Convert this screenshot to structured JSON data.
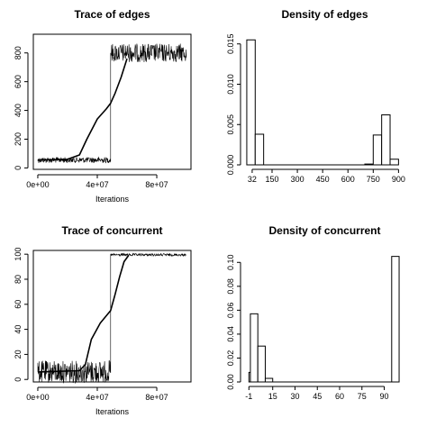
{
  "chart_data": [
    {
      "type": "line",
      "title": "Trace of edges",
      "xlabel": "Iterations",
      "ylabel": "",
      "xlim": [
        -3000000,
        103000000
      ],
      "ylim": [
        -10,
        930
      ],
      "x_ticks": [
        0,
        40000000,
        80000000
      ],
      "x_tick_labels": [
        "0e+00",
        "4e+07",
        "8e+07"
      ],
      "y_ticks": [
        0,
        200,
        400,
        600,
        800
      ],
      "y_tick_labels": [
        "0",
        "200",
        "400",
        "600",
        "800"
      ],
      "series": [
        {
          "kind": "trace",
          "segments": [
            {
              "x_from": 0,
              "x_to": 49000000,
              "mean": 55,
              "spread": 20
            },
            {
              "x_from": 49000000,
              "x_to": 100000000,
              "mean": 800,
              "spread": 65
            }
          ]
        },
        {
          "kind": "running-mean",
          "x": [
            0,
            20000000,
            28000000,
            33000000,
            40000000,
            46000000,
            49000000,
            52000000,
            56000000,
            60000000
          ],
          "y": [
            55,
            60,
            90,
            200,
            340,
            410,
            450,
            520,
            630,
            760
          ]
        }
      ]
    },
    {
      "type": "bar",
      "title": "Density of edges",
      "xlabel": "",
      "ylabel": "",
      "xlim": [
        -5,
        930
      ],
      "ylim": [
        0,
        0.0162
      ],
      "x_ticks": [
        32,
        150,
        300,
        450,
        600,
        750,
        900
      ],
      "x_tick_labels": [
        "32",
        "150",
        "300",
        "450",
        "600",
        "750",
        "900"
      ],
      "y_ticks": [
        0,
        0.005,
        0.01,
        0.015
      ],
      "y_tick_labels": [
        "0.000",
        "0.005",
        "0.010",
        "0.015"
      ],
      "bins": [
        {
          "from": 0,
          "to": 50,
          "value": 0.0155
        },
        {
          "from": 50,
          "to": 100,
          "value": 0.0038
        },
        {
          "from": 700,
          "to": 750,
          "value": 0.0001
        },
        {
          "from": 750,
          "to": 800,
          "value": 0.0037
        },
        {
          "from": 800,
          "to": 850,
          "value": 0.0062
        },
        {
          "from": 850,
          "to": 900,
          "value": 0.0007
        }
      ]
    },
    {
      "type": "line",
      "title": "Trace of concurrent",
      "xlabel": "Iterations",
      "ylabel": "",
      "xlim": [
        -3000000,
        103000000
      ],
      "ylim": [
        -2,
        103
      ],
      "x_ticks": [
        0,
        40000000,
        80000000
      ],
      "x_tick_labels": [
        "0e+00",
        "4e+07",
        "8e+07"
      ],
      "y_ticks": [
        0,
        20,
        40,
        60,
        80,
        100
      ],
      "y_tick_labels": [
        "0",
        "20",
        "40",
        "60",
        "80",
        "100"
      ],
      "series": [
        {
          "kind": "trace",
          "segments": [
            {
              "x_from": 0,
              "x_to": 49000000,
              "mean": 6,
              "spread": 9
            },
            {
              "x_from": 49000000,
              "x_to": 100000000,
              "mean": 99.5,
              "spread": 1
            }
          ]
        },
        {
          "kind": "running-mean",
          "x": [
            0,
            28000000,
            32000000,
            36000000,
            42000000,
            49000000,
            52000000,
            55000000,
            58000000,
            61000000
          ],
          "y": [
            6,
            7,
            12,
            32,
            45,
            55,
            68,
            82,
            94,
            99
          ]
        }
      ]
    },
    {
      "type": "bar",
      "title": "Density of concurrent",
      "xlabel": "",
      "ylabel": "",
      "xlim": [
        -3,
        103
      ],
      "ylim": [
        0,
        0.11
      ],
      "x_ticks": [
        -1,
        15,
        30,
        45,
        60,
        75,
        90
      ],
      "x_tick_labels": [
        "-1",
        "15",
        "30",
        "45",
        "60",
        "75",
        "90"
      ],
      "y_ticks": [
        0,
        0.02,
        0.04,
        0.06,
        0.08,
        0.1
      ],
      "y_tick_labels": [
        "0.00",
        "0.02",
        "0.04",
        "0.06",
        "0.08",
        "0.10"
      ],
      "bins": [
        {
          "from": -1,
          "to": 0,
          "value": 0.008
        },
        {
          "from": 0,
          "to": 5,
          "value": 0.057
        },
        {
          "from": 5,
          "to": 10,
          "value": 0.03
        },
        {
          "from": 10,
          "to": 15,
          "value": 0.003
        },
        {
          "from": 95,
          "to": 100,
          "value": 0.105
        }
      ]
    }
  ]
}
